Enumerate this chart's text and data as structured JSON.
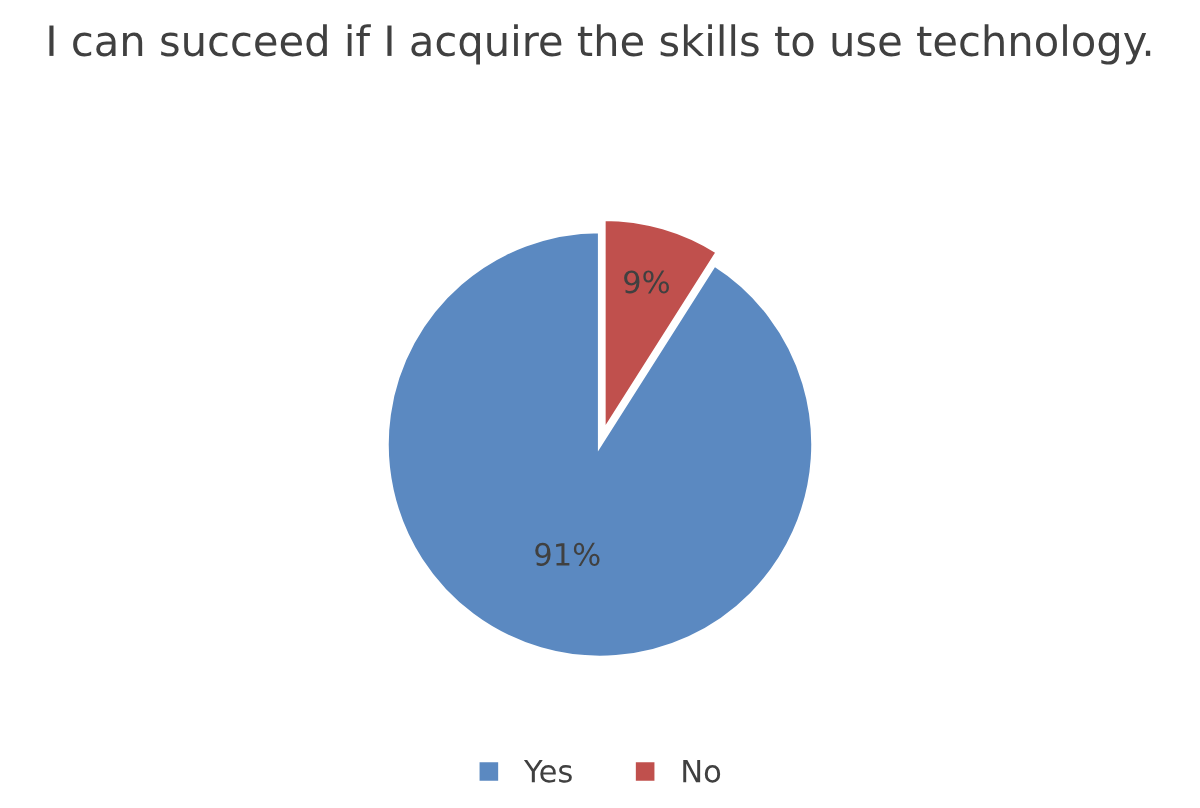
{
  "chart_data": {
    "type": "pie",
    "title": "I can succeed if I acquire the skills to use technology.",
    "categories": [
      "Yes",
      "No"
    ],
    "values": [
      91,
      9
    ],
    "value_labels": [
      "91%",
      "9%"
    ],
    "colors": [
      "#5b89c1",
      "#c0504d"
    ],
    "legend": "bottom"
  }
}
